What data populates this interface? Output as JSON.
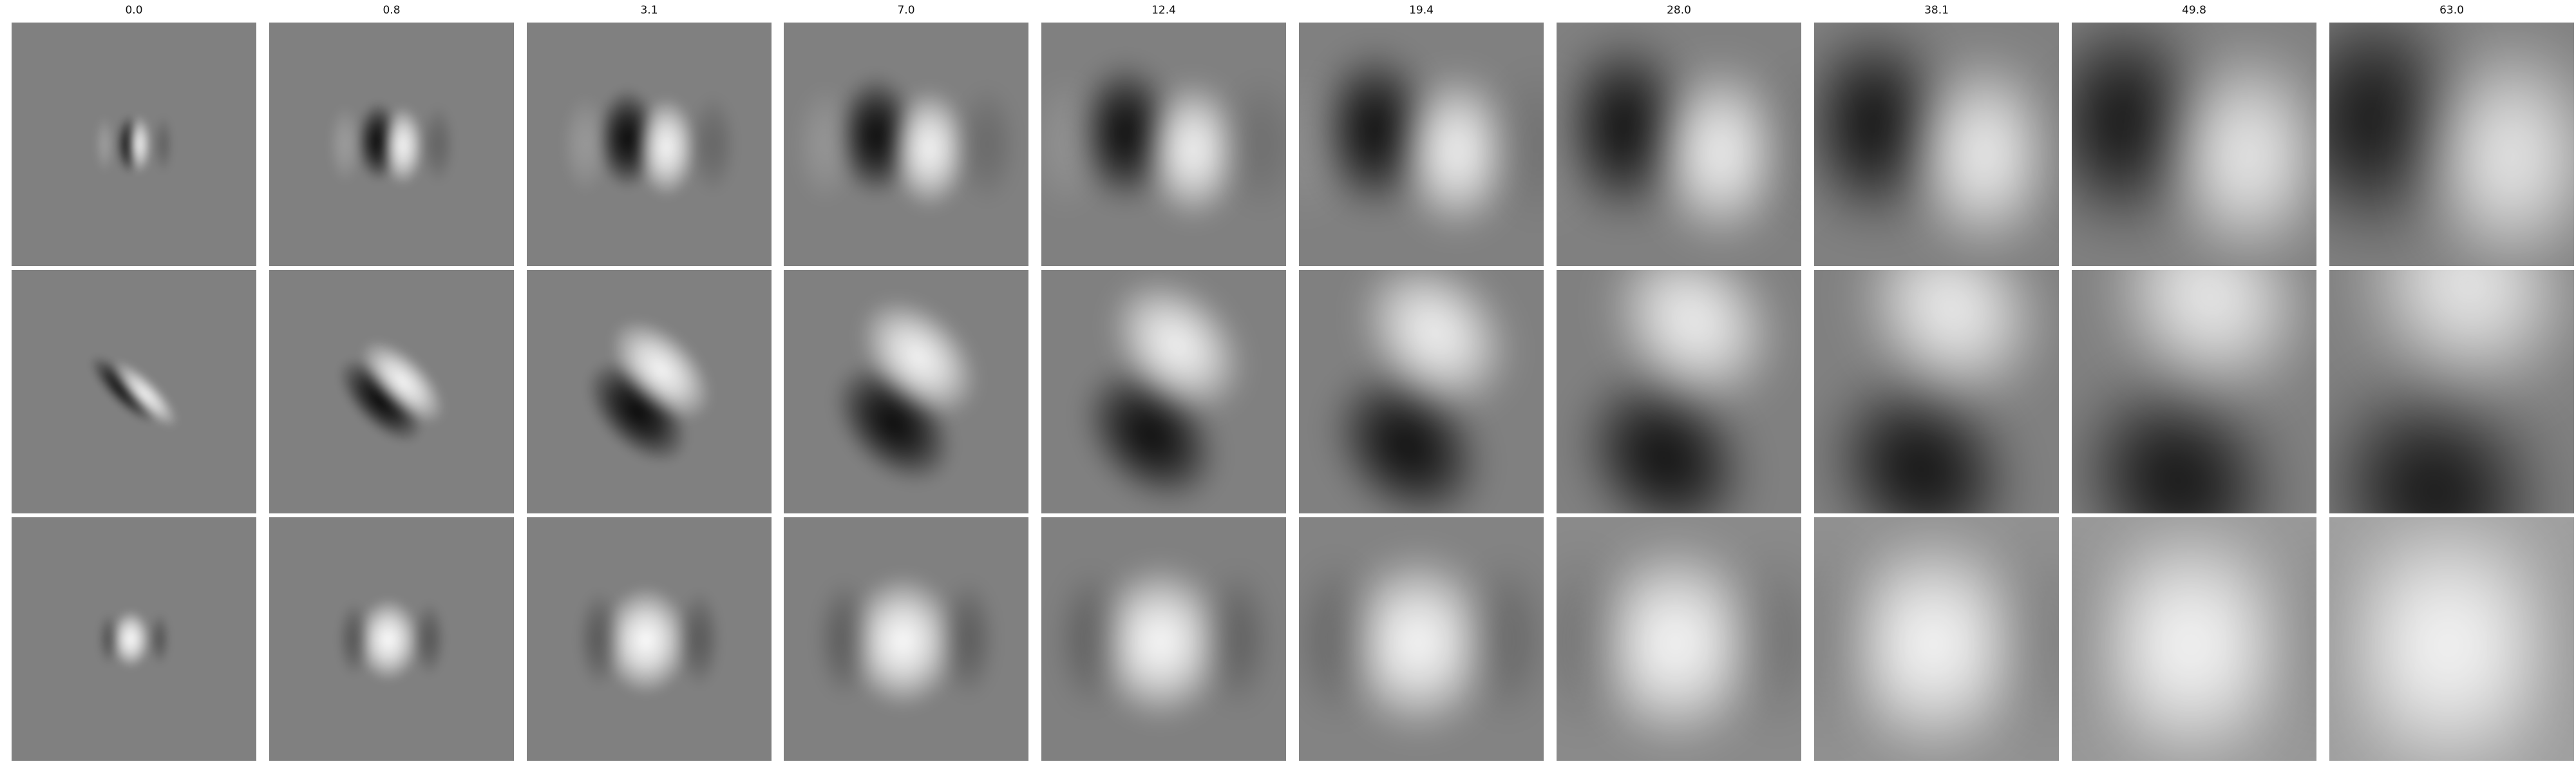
{
  "figure": {
    "column_titles": [
      "0.0",
      "0.8",
      "3.1",
      "7.0",
      "12.4",
      "19.4",
      "28.0",
      "38.1",
      "49.8",
      "63.0"
    ],
    "rows": [
      {
        "pattern": "vertical dark-light pair, left dark lobe and right bright lobe, spreading outward with larger value",
        "panels": [
          {
            "spread": 0.0
          },
          {
            "spread": 0.8
          },
          {
            "spread": 3.1
          },
          {
            "spread": 7.0
          },
          {
            "spread": 12.4
          },
          {
            "spread": 19.4
          },
          {
            "spread": 28.0
          },
          {
            "spread": 38.1
          },
          {
            "spread": 49.8
          },
          {
            "spread": 63.0
          }
        ]
      },
      {
        "pattern": "diagonal dark-light pair oriented from upper-left to lower-right, spreading outward with larger value",
        "panels": [
          {
            "spread": 0.0
          },
          {
            "spread": 0.8
          },
          {
            "spread": 3.1
          },
          {
            "spread": 7.0
          },
          {
            "spread": 12.4
          },
          {
            "spread": 19.4
          },
          {
            "spread": 28.0
          },
          {
            "spread": 38.1
          },
          {
            "spread": 49.8
          },
          {
            "spread": 63.0
          }
        ]
      },
      {
        "pattern": "central bright blob with faint dark side lobes, spreading outward with larger value",
        "panels": [
          {
            "spread": 0.0
          },
          {
            "spread": 0.8
          },
          {
            "spread": 3.1
          },
          {
            "spread": 7.0
          },
          {
            "spread": 12.4
          },
          {
            "spread": 19.4
          },
          {
            "spread": 28.0
          },
          {
            "spread": 38.1
          },
          {
            "spread": 49.8
          },
          {
            "spread": 63.0
          }
        ]
      }
    ],
    "colors": {
      "background": "#ffffff",
      "neutral_gray": "#808080",
      "dark": "#000000",
      "light": "#ffffff"
    }
  }
}
